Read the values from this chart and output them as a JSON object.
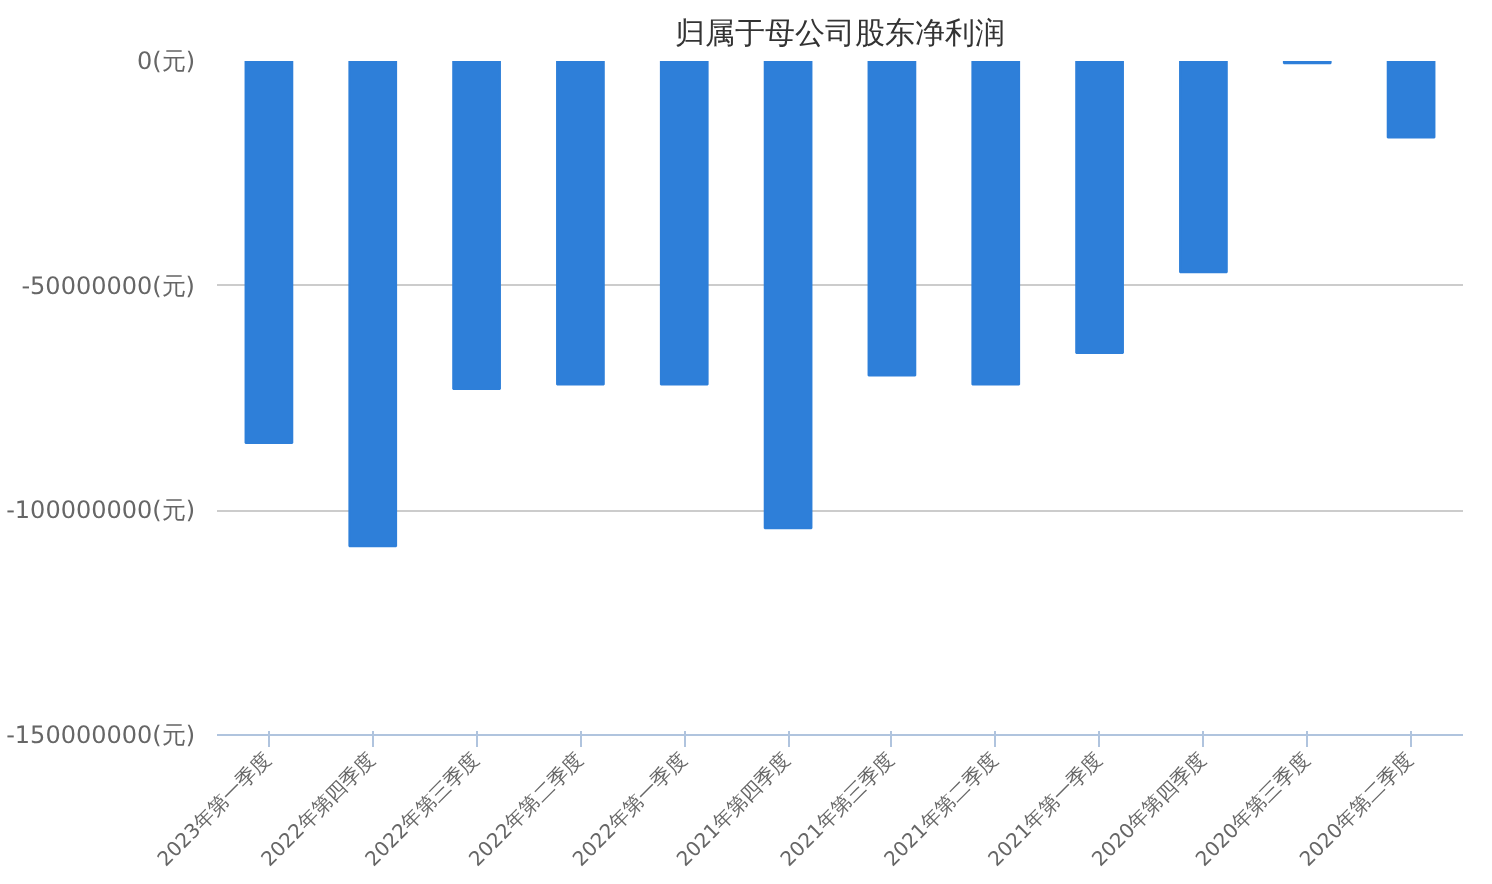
{
  "chart_data": {
    "type": "bar",
    "title": "归属于母公司股东净利润",
    "categories": [
      "2023年第一季度",
      "2022年第四季度",
      "2022年第三季度",
      "2022年第二季度",
      "2022年第一季度",
      "2021年第四季度",
      "2021年第三季度",
      "2021年第二季度",
      "2021年第一季度",
      "2020年第四季度",
      "2020年第三季度",
      "2020年第二季度"
    ],
    "values": [
      -85000000,
      -108000000,
      -73000000,
      -72000000,
      -72000000,
      -104000000,
      -70000000,
      -72000000,
      -65000000,
      -47000000,
      -500000,
      -17000000
    ],
    "color": "#2e7fd9",
    "ylim": [
      -150000000,
      0
    ],
    "yticks": [
      {
        "value": -150000000,
        "label": "-150000000(元)"
      },
      {
        "value": -100000000,
        "label": "-100000000(元)"
      },
      {
        "value": -50000000,
        "label": "-50000000(元)"
      },
      {
        "value": 0,
        "label": "0(元)"
      }
    ],
    "grid": "y"
  }
}
